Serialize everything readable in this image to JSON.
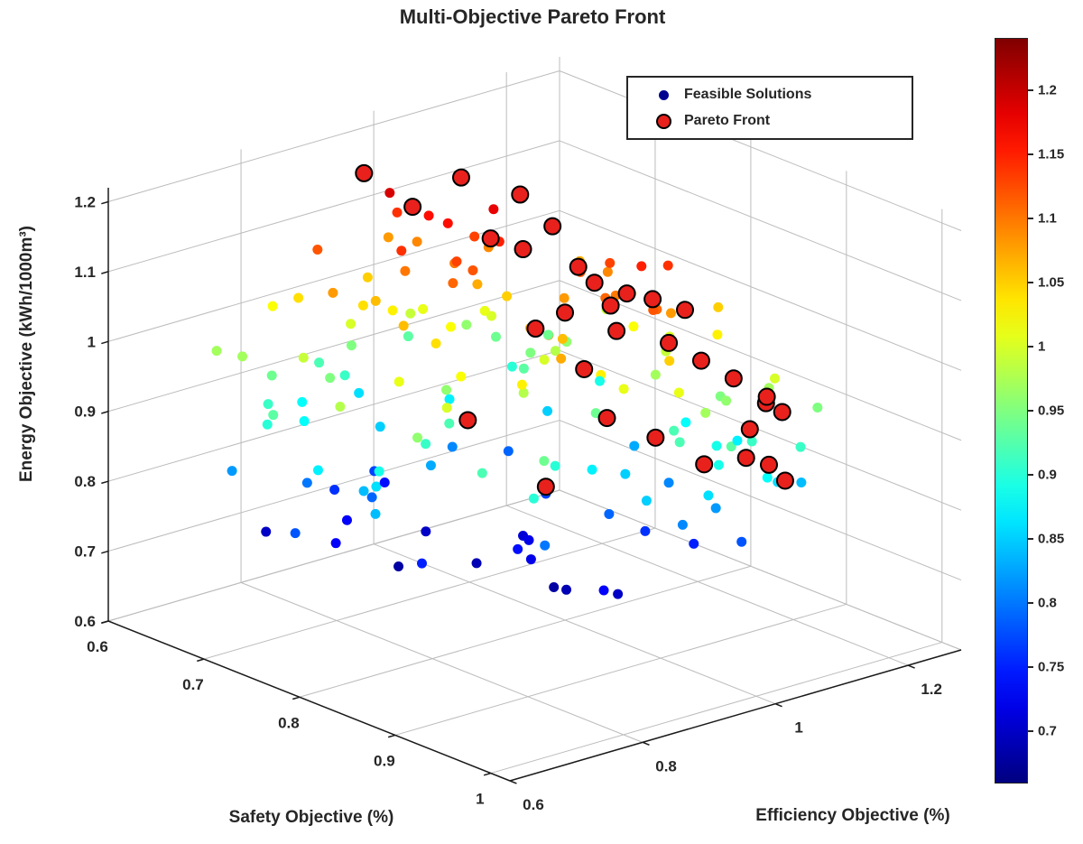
{
  "page": {
    "background": "#ffffff"
  },
  "chart_data": {
    "type": "scatter",
    "subtype": "scatter3d",
    "title": "Multi-Objective Pareto Front",
    "xlabel": "Safety Objective  (%)",
    "ylabel": "Efficiency Objective  (%)",
    "zlabel": "Energy Objective  (kWh/1000m³)",
    "xlim": [
      0.6,
      1.02
    ],
    "ylim": [
      0.6,
      1.28
    ],
    "zlim": [
      0.6,
      1.22
    ],
    "view": {
      "azimuth": -37.5,
      "elevation": 30
    },
    "grid": true,
    "colormap": "jet",
    "xticks": {
      "values": [
        0.6,
        0.7,
        0.8,
        0.9,
        1.0
      ],
      "labels": [
        "0.6",
        "0.7",
        "0.8",
        "0.9",
        "1"
      ]
    },
    "yticks": {
      "values": [
        0.6,
        0.8,
        1.0,
        1.2
      ],
      "labels": [
        "0.6",
        "0.8",
        "1",
        "1.2"
      ]
    },
    "zticks": {
      "values": [
        0.6,
        0.7,
        0.8,
        0.9,
        1.0,
        1.1,
        1.2
      ],
      "labels": [
        "0.6",
        "0.7",
        "0.8",
        "0.9",
        "1",
        "1.1",
        "1.2"
      ]
    },
    "colorbar": {
      "min": 0.66,
      "max": 1.24,
      "tick_values": [
        0.7,
        0.75,
        0.8,
        0.85,
        0.9,
        0.95,
        1.0,
        1.05,
        1.1,
        1.15,
        1.2
      ],
      "tick_labels": [
        "0.7",
        "0.75",
        "0.8",
        "0.85",
        "0.9",
        "0.95",
        "1",
        "1.05",
        "1.1",
        "1.15",
        "1.2"
      ]
    },
    "legend": [
      {
        "label": "Feasible Solutions",
        "marker_color": "#00008F",
        "marker_edge": "#000000"
      },
      {
        "label": "Pareto Front",
        "marker_color": "#E8211D",
        "marker_edge": "#000000"
      }
    ],
    "series": [
      {
        "name": "Feasible Solutions",
        "color_by": "energy",
        "marker_radius": 5.5,
        "points": [
          [
            0.63,
            0.72,
            0.97
          ],
          [
            0.66,
            0.8,
            1.04
          ],
          [
            0.7,
            0.75,
            0.99
          ],
          [
            0.64,
            0.86,
            0.92
          ],
          [
            0.72,
            0.83,
            1.06
          ],
          [
            0.68,
            0.78,
            0.88
          ],
          [
            0.75,
            0.9,
            1.02
          ],
          [
            0.71,
            0.69,
            0.93
          ],
          [
            0.65,
            0.95,
            1.08
          ],
          [
            0.78,
            0.85,
            0.96
          ],
          [
            0.74,
            0.92,
            1.1
          ],
          [
            0.69,
            0.88,
            0.85
          ],
          [
            0.8,
            0.79,
            0.91
          ],
          [
            0.76,
            0.97,
            1.05
          ],
          [
            0.73,
            0.81,
            0.79
          ],
          [
            0.82,
            0.94,
            1.0
          ],
          [
            0.67,
            0.84,
            0.76
          ],
          [
            0.79,
            1.0,
            0.98
          ],
          [
            0.84,
            0.89,
            1.07
          ],
          [
            0.7,
            0.93,
            1.01
          ],
          [
            0.86,
            0.96,
            0.94
          ],
          [
            0.77,
            0.74,
            0.84
          ],
          [
            0.81,
            1.05,
            1.09
          ],
          [
            0.88,
            0.87,
            0.9
          ],
          [
            0.66,
            0.7,
            0.82
          ],
          [
            0.83,
            0.98,
            1.12
          ],
          [
            0.75,
            1.02,
            0.95
          ],
          [
            0.9,
            0.91,
            1.03
          ],
          [
            0.72,
            0.77,
            0.73
          ],
          [
            0.85,
            1.08,
            0.99
          ],
          [
            0.78,
            0.86,
            1.11
          ],
          [
            0.92,
            1.0,
            0.92
          ],
          [
            0.64,
            0.78,
            0.7
          ],
          [
            0.87,
            0.94,
            0.87
          ],
          [
            0.8,
            1.1,
            1.04
          ],
          [
            0.74,
            0.68,
            0.78
          ],
          [
            0.89,
            1.03,
            1.08
          ],
          [
            0.82,
            0.9,
            0.74
          ],
          [
            0.76,
            1.06,
            0.96
          ],
          [
            0.94,
            0.97,
            1.01
          ],
          [
            0.68,
            0.92,
            1.14
          ],
          [
            0.91,
            1.07,
            0.89
          ],
          [
            0.73,
            0.85,
            0.68
          ],
          [
            0.86,
            0.99,
            1.1
          ],
          [
            0.79,
            0.73,
            0.86
          ],
          [
            0.93,
            1.12,
            0.97
          ],
          [
            0.71,
            0.96,
            0.81
          ],
          [
            0.84,
            1.01,
            1.13
          ],
          [
            0.66,
            0.88,
            0.95
          ],
          [
            0.88,
            0.76,
            0.92
          ],
          [
            0.81,
            1.09,
            0.83
          ],
          [
            0.75,
            0.94,
            1.07
          ],
          [
            0.9,
            1.05,
            0.75
          ],
          [
            0.69,
            0.71,
            0.9
          ],
          [
            0.95,
            1.1,
            1.0
          ],
          [
            0.77,
            0.98,
            0.71
          ],
          [
            0.83,
            0.8,
            1.02
          ],
          [
            0.7,
            1.04,
            0.94
          ],
          [
            0.92,
            0.95,
            0.85
          ],
          [
            0.78,
            0.69,
            0.98
          ],
          [
            0.87,
            1.13,
            1.05
          ],
          [
            0.65,
            0.82,
            0.88
          ],
          [
            0.96,
            1.02,
            0.93
          ],
          [
            0.74,
            0.91,
            1.16
          ],
          [
            0.89,
            0.84,
            0.8
          ],
          [
            0.72,
            1.0,
            1.09
          ],
          [
            0.85,
            0.93,
            0.69
          ],
          [
            0.8,
            0.75,
            1.01
          ],
          [
            0.94,
            1.08,
            0.91
          ],
          [
            0.67,
            0.9,
            0.77
          ],
          [
            0.91,
            0.98,
            1.11
          ],
          [
            0.76,
            1.11,
            0.89
          ],
          [
            0.84,
            0.72,
            0.96
          ],
          [
            0.71,
            0.87,
            1.03
          ],
          [
            0.93,
            1.04,
            0.82
          ],
          [
            0.79,
            0.96,
            0.72
          ],
          [
            0.88,
            1.0,
            1.15
          ],
          [
            0.66,
            0.76,
            0.94
          ],
          [
            0.97,
            1.06,
            0.88
          ],
          [
            0.73,
            0.99,
            1.0
          ],
          [
            0.86,
            0.91,
            1.06
          ],
          [
            0.69,
            0.83,
            0.73
          ],
          [
            0.9,
            1.09,
            0.95
          ],
          [
            0.75,
            0.7,
            0.87
          ],
          [
            0.82,
            0.97,
            1.08
          ],
          [
            0.95,
            1.14,
            0.84
          ],
          [
            0.68,
            0.94,
            0.99
          ],
          [
            0.87,
            1.02,
            0.76
          ],
          [
            0.78,
            0.89,
            1.12
          ],
          [
            0.92,
            0.78,
            0.9
          ],
          [
            0.64,
            0.92,
            0.86
          ],
          [
            0.83,
            1.06,
            1.02
          ],
          [
            0.7,
            0.79,
            0.95
          ],
          [
            0.89,
            0.95,
            0.7
          ],
          [
            0.76,
            1.08,
            1.07
          ],
          [
            0.94,
            1.01,
            0.97
          ],
          [
            0.67,
            0.74,
            0.91
          ],
          [
            0.85,
            1.11,
            0.88
          ],
          [
            0.79,
            0.82,
            1.04
          ],
          [
            0.91,
            0.93,
            1.01
          ],
          [
            0.72,
            1.03,
            0.79
          ],
          [
            0.88,
            0.86,
            1.09
          ],
          [
            0.65,
            0.98,
            0.93
          ],
          [
            0.96,
            1.09,
            0.86
          ],
          [
            0.81,
            0.77,
            0.75
          ],
          [
            0.74,
            0.95,
            1.13
          ],
          [
            0.9,
            1.02,
            0.92
          ],
          [
            0.68,
            0.85,
            1.0
          ],
          [
            0.86,
            1.07,
            0.81
          ],
          [
            0.77,
            0.91,
            0.69
          ],
          [
            0.93,
            0.97,
            1.05
          ],
          [
            0.71,
            1.05,
            0.9
          ],
          [
            0.84,
            0.88,
            0.98
          ],
          [
            0.66,
            0.93,
            0.74
          ],
          [
            0.89,
            1.1,
            1.03
          ],
          [
            0.8,
            0.72,
            0.89
          ],
          [
            0.95,
            1.05,
            0.78
          ],
          [
            0.73,
            0.86,
            1.1
          ],
          [
            0.87,
            0.99,
            0.85
          ],
          [
            0.69,
            1.01,
            0.96
          ],
          [
            0.91,
            0.81,
            0.94
          ],
          [
            0.76,
            1.12,
            0.99
          ],
          [
            0.82,
            0.92,
            0.72
          ],
          [
            0.64,
            0.79,
            1.02
          ],
          [
            0.88,
            1.04,
            1.14
          ],
          [
            0.75,
            0.87,
            0.83
          ],
          [
            0.97,
            1.11,
            0.91
          ],
          [
            0.7,
            0.97,
            0.87
          ],
          [
            0.85,
            0.75,
            1.0
          ],
          [
            0.78,
            1.0,
            0.77
          ],
          [
            0.92,
            1.07,
            0.96
          ],
          [
            0.67,
            0.89,
            1.05
          ],
          [
            0.83,
            0.94,
            0.68
          ],
          [
            0.9,
            0.85,
            1.07
          ],
          [
            0.72,
            1.09,
            0.94
          ],
          [
            0.86,
            0.98,
            0.79
          ],
          [
            0.79,
            0.84,
            0.92
          ],
          [
            0.94,
            1.03,
            0.89
          ],
          [
            0.65,
            0.73,
            0.97
          ],
          [
            0.87,
            0.96,
            1.11
          ],
          [
            0.74,
            1.06,
            0.85
          ],
          [
            0.91,
            0.9,
            0.73
          ],
          [
            0.68,
            0.95,
            1.09
          ],
          [
            0.96,
            1.15,
            0.95
          ],
          [
            0.81,
            0.7,
            0.84
          ],
          [
            0.73,
            0.98,
            1.01
          ],
          [
            0.89,
            1.13,
            0.87
          ],
          [
            0.77,
            0.8,
            1.06
          ],
          [
            0.93,
            0.99,
            0.81
          ],
          [
            0.66,
            0.87,
            0.91
          ],
          [
            0.84,
            1.1,
            1.0
          ],
          [
            0.71,
            0.92,
            0.7
          ],
          [
            0.88,
            0.82,
            1.03
          ],
          [
            0.75,
            1.01,
            0.93
          ],
          [
            0.92,
            0.96,
            1.12
          ],
          [
            0.69,
            0.77,
            0.8
          ],
          [
            0.86,
            1.05,
            0.97
          ],
          [
            0.78,
            0.93,
            1.15
          ],
          [
            0.95,
            1.0,
            0.86
          ],
          [
            0.7,
            0.84,
            1.04
          ],
          [
            0.7,
            0.88,
            1.19
          ],
          [
            0.76,
            0.95,
            1.18
          ],
          [
            0.72,
            0.91,
            1.16
          ],
          [
            0.8,
            0.98,
            1.17
          ],
          [
            0.68,
            0.8,
            1.12
          ],
          [
            0.74,
            0.84,
            1.14
          ],
          [
            0.71,
            0.78,
            1.08
          ],
          [
            0.77,
            0.88,
            1.13
          ]
        ]
      },
      {
        "name": "Pareto Front",
        "color": "#E8211D",
        "edge": "#000000",
        "marker_radius": 9,
        "points": [
          [
            0.68,
            0.87,
            1.21
          ],
          [
            0.74,
            0.93,
            1.22
          ],
          [
            0.76,
            0.99,
            1.19
          ],
          [
            0.78,
            1.01,
            1.15
          ],
          [
            0.77,
            0.98,
            1.12
          ],
          [
            0.8,
            1.02,
            1.1
          ],
          [
            0.81,
            1.03,
            1.08
          ],
          [
            0.83,
            1.05,
            1.07
          ],
          [
            0.85,
            1.06,
            1.07
          ],
          [
            0.87,
            1.08,
            1.06
          ],
          [
            0.82,
            1.04,
            1.05
          ],
          [
            0.84,
            1.02,
            1.03
          ],
          [
            0.79,
            0.97,
            1.02
          ],
          [
            0.86,
            1.07,
            1.01
          ],
          [
            0.88,
            1.09,
            0.99
          ],
          [
            0.9,
            1.11,
            0.97
          ],
          [
            0.92,
            1.13,
            0.94
          ],
          [
            0.93,
            1.14,
            0.93
          ],
          [
            0.91,
            1.12,
            0.9
          ],
          [
            0.92,
            1.1,
            0.87
          ],
          [
            0.93,
            1.12,
            0.86
          ],
          [
            0.94,
            1.13,
            0.84
          ],
          [
            0.89,
            1.08,
            0.85
          ],
          [
            0.86,
            1.05,
            0.88
          ],
          [
            0.83,
            1.02,
            0.9
          ],
          [
            0.78,
            1.0,
            0.78
          ],
          [
            0.74,
            0.94,
            0.87
          ],
          [
            0.71,
            0.9,
            1.17
          ],
          [
            0.75,
            0.96,
            1.13
          ],
          [
            0.8,
            1.0,
            1.04
          ],
          [
            0.82,
            1.0,
            0.97
          ],
          [
            0.9,
            1.16,
            0.93
          ]
        ]
      }
    ]
  }
}
